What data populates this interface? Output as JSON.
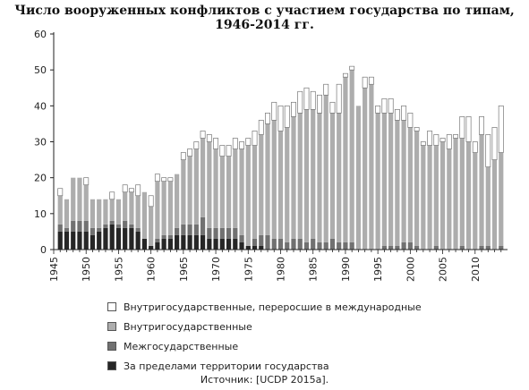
{
  "title": "Число вооруженных конфликтов с участием государства по типам, 1946-2014 гг.",
  "source": "Источник: [UCDP 2015a].",
  "colors": {
    "internationalized": "#ffffff",
    "intrastate": "#adadad",
    "interstate": "#717171",
    "extrasystemic": "#262626",
    "outline": "#777777",
    "axis": "#222222",
    "grid": "#e6e6e6"
  },
  "legend": [
    {
      "label": "Внутригосударственные, переросшие в международные",
      "key": "internationalized"
    },
    {
      "label": "Внутригосударственные",
      "key": "intrastate"
    },
    {
      "label": "Межгосударственные",
      "key": "interstate"
    },
    {
      "label": "За пределами территории государства",
      "key": "extrasystemic"
    }
  ],
  "chart_data": {
    "type": "bar",
    "stacked": true,
    "title": "Число вооруженных конфликтов с участием государства по типам, 1946-2014 гг.",
    "ylim": [
      0,
      60
    ],
    "yticks": [
      0,
      10,
      20,
      30,
      40,
      50,
      60
    ],
    "xticks": [
      "1945",
      "1950",
      "1955",
      "1960",
      "1965",
      "1970",
      "1975",
      "1980",
      "1985",
      "1990",
      "1995",
      "2000",
      "2005",
      "2010"
    ],
    "grid": false,
    "categories": [
      "1946",
      "1947",
      "1948",
      "1949",
      "1950",
      "1951",
      "1952",
      "1953",
      "1954",
      "1955",
      "1956",
      "1957",
      "1958",
      "1959",
      "1960",
      "1961",
      "1962",
      "1963",
      "1964",
      "1965",
      "1966",
      "1967",
      "1968",
      "1969",
      "1970",
      "1971",
      "1972",
      "1973",
      "1974",
      "1975",
      "1976",
      "1977",
      "1978",
      "1979",
      "1980",
      "1981",
      "1982",
      "1983",
      "1984",
      "1985",
      "1986",
      "1987",
      "1988",
      "1989",
      "1990",
      "1991",
      "1992",
      "1993",
      "1994",
      "1995",
      "1996",
      "1997",
      "1998",
      "1999",
      "2000",
      "2001",
      "2002",
      "2003",
      "2004",
      "2005",
      "2006",
      "2007",
      "2008",
      "2009",
      "2010",
      "2011",
      "2012",
      "2013",
      "2014"
    ],
    "series": [
      {
        "name": "За пределами территории государства",
        "values": [
          5,
          5,
          5,
          5,
          5,
          4,
          5,
          6,
          7,
          6,
          6,
          6,
          5,
          3,
          1,
          2,
          3,
          3,
          4,
          4,
          4,
          4,
          4,
          3,
          3,
          3,
          3,
          3,
          2,
          1,
          1,
          1,
          0,
          0,
          0,
          0,
          0,
          0,
          0,
          0,
          0,
          0,
          0,
          0,
          0,
          0,
          0,
          0,
          0,
          0,
          0,
          0,
          0,
          0,
          0,
          0,
          0,
          0,
          0,
          0,
          0,
          0,
          0,
          0,
          0,
          0,
          0,
          0,
          0
        ]
      },
      {
        "name": "Межгосударственные",
        "values": [
          2,
          1,
          3,
          3,
          3,
          2,
          1,
          1,
          1,
          1,
          2,
          1,
          1,
          0,
          0,
          1,
          1,
          1,
          2,
          3,
          3,
          3,
          5,
          3,
          3,
          3,
          3,
          3,
          2,
          0,
          2,
          3,
          4,
          3,
          3,
          2,
          3,
          3,
          2,
          3,
          2,
          2,
          3,
          2,
          2,
          2,
          0,
          0,
          0,
          0,
          1,
          1,
          1,
          2,
          2,
          1,
          0,
          0,
          1,
          0,
          0,
          0,
          1,
          0,
          0,
          1,
          1,
          0,
          1
        ]
      },
      {
        "name": "Внутригосударственные",
        "values": [
          8,
          8,
          12,
          12,
          10,
          8,
          8,
          7,
          6,
          7,
          8,
          9,
          9,
          13,
          11,
          16,
          15,
          15,
          15,
          18,
          19,
          21,
          22,
          24,
          22,
          20,
          20,
          22,
          24,
          28,
          26,
          28,
          31,
          33,
          30,
          32,
          34,
          35,
          37,
          36,
          36,
          41,
          35,
          36,
          46,
          48,
          40,
          45,
          46,
          38,
          37,
          37,
          35,
          34,
          32,
          32,
          29,
          29,
          28,
          30,
          28,
          31,
          30,
          30,
          27,
          31,
          22,
          25,
          26
        ]
      },
      {
        "name": "Внутригосударственные, переросшие в международные",
        "values": [
          2,
          0,
          0,
          0,
          2,
          0,
          0,
          0,
          2,
          0,
          2,
          1,
          3,
          0,
          3,
          2,
          1,
          1,
          0,
          2,
          2,
          2,
          2,
          2,
          3,
          3,
          3,
          3,
          2,
          2,
          4,
          4,
          3,
          5,
          7,
          6,
          4,
          6,
          6,
          5,
          5,
          3,
          3,
          8,
          1,
          1,
          0,
          3,
          2,
          2,
          4,
          4,
          3,
          4,
          4,
          1,
          1,
          4,
          3,
          1,
          4,
          1,
          6,
          7,
          3,
          5,
          9,
          9,
          13
        ]
      }
    ]
  }
}
